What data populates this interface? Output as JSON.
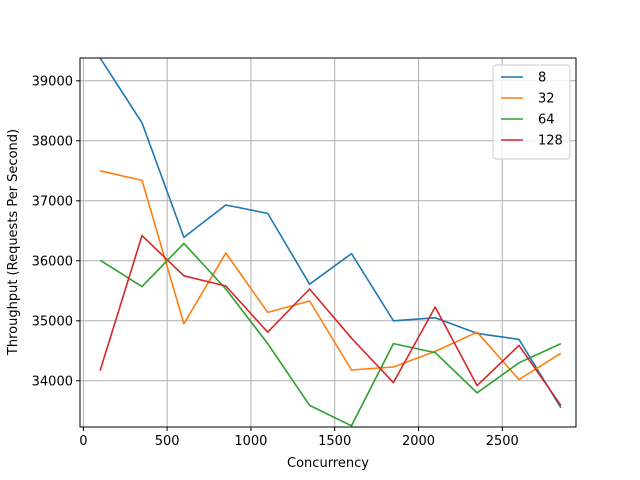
{
  "chart_data": {
    "type": "line",
    "title": "",
    "xlabel": "Concurrency",
    "ylabel": "Throughput (Requests Per Second)",
    "xlim": [
      -20,
      2940
    ],
    "ylim": [
      33230,
      39380
    ],
    "xticks": [
      0,
      500,
      1000,
      1500,
      2000,
      2500
    ],
    "yticks": [
      34000,
      35000,
      36000,
      37000,
      38000,
      39000
    ],
    "grid": true,
    "legend_position": "top-right",
    "x": [
      100,
      350,
      600,
      850,
      1100,
      1350,
      1600,
      1850,
      2100,
      2350,
      2600,
      2850
    ],
    "series": [
      {
        "name": "8",
        "color": "#1f77b4",
        "values": [
          39380,
          38300,
          36390,
          36930,
          36790,
          35610,
          36120,
          35000,
          35050,
          34790,
          34690,
          33550
        ]
      },
      {
        "name": "32",
        "color": "#ff7f0e",
        "values": [
          37500,
          37340,
          34950,
          36130,
          35140,
          35330,
          34180,
          34230,
          34490,
          34810,
          34020,
          34460
        ]
      },
      {
        "name": "64",
        "color": "#2ca02c",
        "values": [
          36010,
          35570,
          36290,
          35530,
          34620,
          33590,
          33250,
          34620,
          34470,
          33800,
          34300,
          34620
        ]
      },
      {
        "name": "128",
        "color": "#d62728",
        "values": [
          34170,
          36420,
          35750,
          35580,
          34810,
          35530,
          34710,
          33970,
          35230,
          33920,
          34590,
          33590
        ]
      }
    ]
  }
}
